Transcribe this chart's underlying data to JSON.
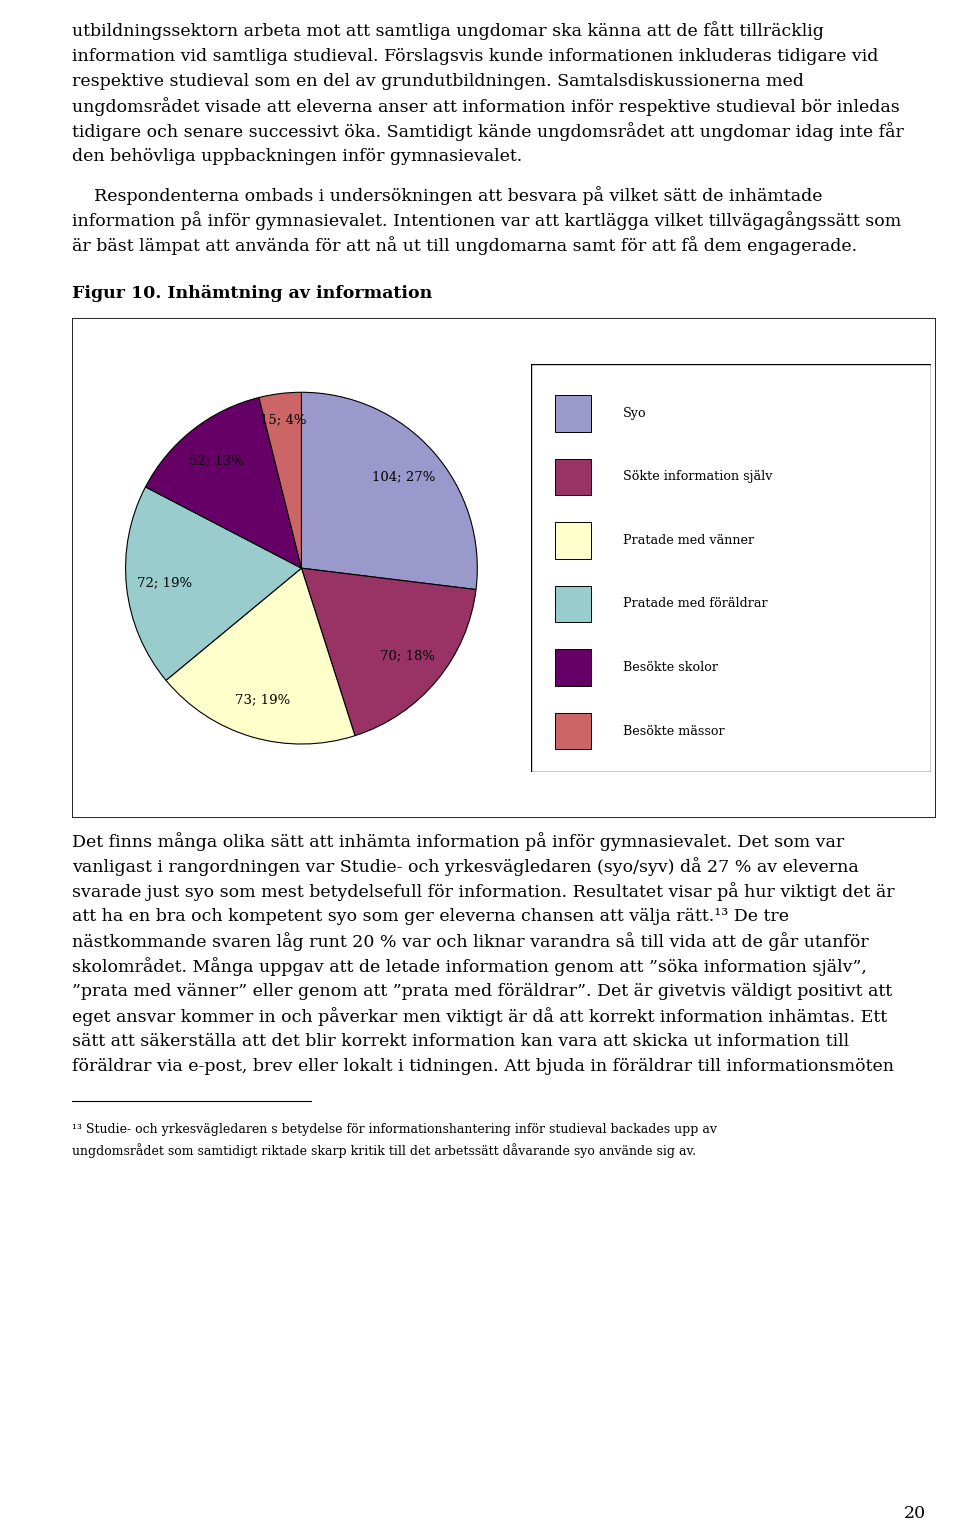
{
  "page_text_top": [
    "utbildningssektorn arbeta mot att samtliga ungdomar ska känna att de fått tillräcklig",
    "information vid samtliga studieval. Förslagsvis kunde informationen inkluderas tidigare vid",
    "respektive studieval som en del av grundutbildningen. Samtalsdiskussionerna med",
    "ungdomsrådet visade att eleverna anser att information inför respektive studieval bör inledas",
    "tidigare och senare successivt öka. Samtidigt kände ungdomsrådet att ungdomar idag inte får",
    "den behövliga uppbackningen inför gymnasievalet."
  ],
  "page_text_mid": [
    "    Respondenterna ombads i undersökningen att besvara på vilket sätt de inhämtade",
    "information på inför gymnasievalet. Intentionen var att kartlägga vilket tillvägagångssätt som",
    "är bäst lämpat att använda för att nå ut till ungdomarna samt för att få dem engagerade."
  ],
  "figure_label": "Figur 10. Inhämtning av information",
  "pie_values": [
    104,
    70,
    73,
    72,
    52,
    15
  ],
  "pie_labels": [
    "104; 27%",
    "70; 18%",
    "73; 19%",
    "72; 19%",
    "52; 13%",
    "15; 4%"
  ],
  "pie_colors": [
    "#9999CC",
    "#993366",
    "#FFFFCC",
    "#99CCCC",
    "#660066",
    "#CC6666"
  ],
  "legend_labels": [
    "Syo",
    "Sökte information själv",
    "Pratade med vänner",
    "Pratade med föräldrar",
    "Besökte skolor",
    "Besökte mässor"
  ],
  "legend_colors": [
    "#9999CC",
    "#993366",
    "#FFFFCC",
    "#99CCCC",
    "#660066",
    "#CC6666"
  ],
  "page_text_bottom": [
    "Det finns många olika sätt att inhämta information på inför gymnasievalet. Det som var",
    "vanligast i rangordningen var Studie- och yrkesvägledaren (syo/syv) då 27 % av eleverna",
    "svarade just syo som mest betydelsefull för information. Resultatet visar på hur viktigt det är",
    "att ha en bra och kompetent syo som ger eleverna chansen att välja rätt.¹³ De tre",
    "nästkommande svaren låg runt 20 % var och liknar varandra så till vida att de går utanför",
    "skolområdet. Många uppgav att de letade information genom att ”söka information själv”,",
    "”prata med vänner” eller genom att ”prata med föräldrar”. Det är givetvis väldigt positivt att",
    "eget ansvar kommer in och påverkar men viktigt är då att korrekt information inhämtas. Ett",
    "sätt att säkerställa att det blir korrekt information kan vara att skicka ut information till",
    "föräldrar via e-post, brev eller lokalt i tidningen. Att bjuda in föräldrar till informationsmöten"
  ],
  "footnote_text": [
    "¹³ Studie- och yrkesvägledaren s betydelse för informationshantering inför studieval backades upp av",
    "ungdomsrådet som samtidigt riktade skarp kritik till det arbetssätt dåvarande syo använde sig av."
  ],
  "page_number": "20",
  "background_color": "#FFFFFF",
  "text_fontsize": 12.5,
  "footnote_fontsize": 9.0,
  "label_fontsize": 12.5
}
